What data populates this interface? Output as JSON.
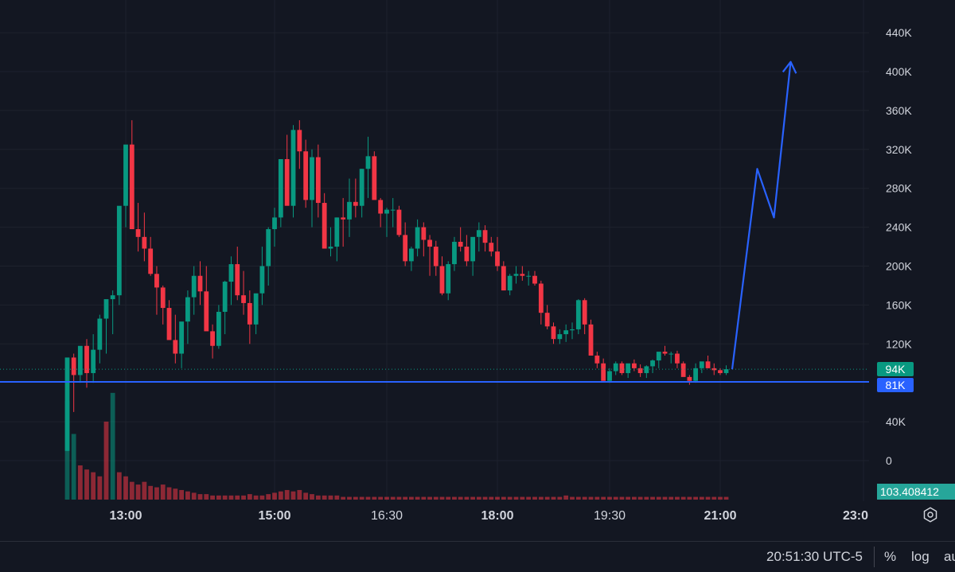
{
  "chart_data": {
    "type": "candlestick",
    "y_axis": {
      "ticks": [
        "440K",
        "400K",
        "360K",
        "320K",
        "280K",
        "240K",
        "200K",
        "160K",
        "120K",
        "40K",
        "0"
      ],
      "ylim": [
        -40000,
        470000
      ]
    },
    "x_axis": {
      "ticks": [
        {
          "label": "13:00",
          "bold": true
        },
        {
          "label": "15:00",
          "bold": true
        },
        {
          "label": "16:30",
          "bold": false
        },
        {
          "label": "18:00",
          "bold": true
        },
        {
          "label": "19:30",
          "bold": false
        },
        {
          "label": "21:00",
          "bold": true
        },
        {
          "label": "23:0",
          "bold": true
        }
      ]
    },
    "price_labels": {
      "current": {
        "text": "94K",
        "value": 94000,
        "color": "#089981"
      },
      "horizontal_line": {
        "text": "81K",
        "value": 81000,
        "color": "#2962ff"
      }
    },
    "volume_label": "103.408412",
    "candles": [
      [
        10,
        70,
        10,
        106
      ],
      [
        106,
        110,
        50,
        88
      ],
      [
        88,
        112,
        80,
        118
      ],
      [
        118,
        125,
        75,
        90
      ],
      [
        90,
        130,
        80,
        114
      ],
      [
        114,
        150,
        100,
        146
      ],
      [
        146,
        155,
        110,
        166
      ],
      [
        166,
        175,
        130,
        170
      ],
      [
        170,
        200,
        160,
        262
      ],
      [
        262,
        310,
        240,
        325
      ],
      [
        325,
        350,
        260,
        238
      ],
      [
        238,
        265,
        215,
        230
      ],
      [
        230,
        255,
        205,
        218
      ],
      [
        218,
        230,
        190,
        192
      ],
      [
        192,
        200,
        150,
        178
      ],
      [
        178,
        180,
        140,
        157
      ],
      [
        157,
        165,
        135,
        124
      ],
      [
        124,
        150,
        100,
        110
      ],
      [
        110,
        140,
        95,
        143
      ],
      [
        143,
        175,
        120,
        168
      ],
      [
        168,
        200,
        150,
        190
      ],
      [
        190,
        205,
        160,
        174
      ],
      [
        174,
        200,
        160,
        133
      ],
      [
        133,
        140,
        105,
        118
      ],
      [
        118,
        160,
        115,
        153
      ],
      [
        153,
        185,
        130,
        184
      ],
      [
        184,
        210,
        160,
        202
      ],
      [
        202,
        220,
        165,
        170
      ],
      [
        170,
        195,
        150,
        162
      ],
      [
        162,
        175,
        120,
        140
      ],
      [
        140,
        160,
        130,
        172
      ],
      [
        172,
        220,
        160,
        200
      ],
      [
        200,
        240,
        180,
        238
      ],
      [
        238,
        260,
        220,
        250
      ],
      [
        250,
        310,
        240,
        310
      ],
      [
        310,
        335,
        270,
        262
      ],
      [
        262,
        345,
        250,
        340
      ],
      [
        340,
        350,
        300,
        318
      ],
      [
        318,
        330,
        260,
        268
      ],
      [
        268,
        320,
        240,
        312
      ],
      [
        312,
        325,
        250,
        265
      ],
      [
        265,
        275,
        225,
        218
      ],
      [
        218,
        240,
        210,
        220
      ],
      [
        220,
        250,
        205,
        250
      ],
      [
        250,
        270,
        220,
        248
      ],
      [
        248,
        290,
        230,
        266
      ],
      [
        266,
        290,
        250,
        262
      ],
      [
        262,
        300,
        250,
        300
      ],
      [
        300,
        333,
        270,
        313
      ],
      [
        313,
        318,
        270,
        268
      ],
      [
        268,
        270,
        240,
        254
      ],
      [
        254,
        260,
        230,
        258
      ],
      [
        258,
        270,
        240,
        258
      ],
      [
        258,
        262,
        230,
        232
      ],
      [
        232,
        245,
        200,
        205
      ],
      [
        205,
        220,
        195,
        218
      ],
      [
        218,
        248,
        210,
        240
      ],
      [
        240,
        245,
        210,
        227
      ],
      [
        227,
        232,
        190,
        220
      ],
      [
        220,
        226,
        190,
        200
      ],
      [
        200,
        210,
        170,
        172
      ],
      [
        172,
        205,
        165,
        202
      ],
      [
        202,
        230,
        195,
        225
      ],
      [
        225,
        240,
        215,
        220
      ],
      [
        220,
        232,
        200,
        205
      ],
      [
        205,
        210,
        190,
        230
      ],
      [
        230,
        245,
        215,
        237
      ],
      [
        237,
        242,
        215,
        224
      ],
      [
        224,
        230,
        210,
        215
      ],
      [
        215,
        230,
        195,
        200
      ],
      [
        200,
        205,
        175,
        175
      ],
      [
        175,
        192,
        170,
        190
      ],
      [
        190,
        200,
        182,
        192
      ],
      [
        192,
        200,
        185,
        190
      ],
      [
        190,
        195,
        180,
        190
      ],
      [
        190,
        195,
        180,
        182
      ],
      [
        182,
        185,
        140,
        152
      ],
      [
        152,
        160,
        135,
        138
      ],
      [
        138,
        142,
        120,
        125
      ],
      [
        125,
        135,
        120,
        130
      ],
      [
        130,
        140,
        122,
        134
      ],
      [
        134,
        142,
        125,
        135
      ],
      [
        135,
        166,
        130,
        165
      ],
      [
        165,
        167,
        130,
        140
      ],
      [
        140,
        145,
        125,
        108
      ],
      [
        108,
        112,
        95,
        100
      ],
      [
        100,
        105,
        92,
        82
      ],
      [
        82,
        95,
        80,
        92
      ],
      [
        92,
        102,
        88,
        100
      ],
      [
        100,
        102,
        88,
        90
      ],
      [
        90,
        97,
        85,
        100
      ],
      [
        100,
        104,
        92,
        95
      ],
      [
        95,
        99,
        86,
        90
      ],
      [
        90,
        98,
        85,
        97
      ],
      [
        97,
        104,
        90,
        103
      ],
      [
        103,
        110,
        95,
        112
      ],
      [
        112,
        118,
        108,
        110
      ],
      [
        110,
        112,
        100,
        110
      ],
      [
        110,
        113,
        95,
        100
      ],
      [
        100,
        102,
        88,
        86
      ],
      [
        86,
        88,
        78,
        82
      ],
      [
        82,
        100,
        80,
        95
      ],
      [
        95,
        100,
        90,
        102
      ],
      [
        102,
        108,
        95,
        95
      ],
      [
        95,
        100,
        88,
        93
      ],
      [
        93,
        95,
        88,
        90
      ],
      [
        90,
        98,
        88,
        94
      ]
    ],
    "volumes": [
      [
        72,
        true
      ],
      [
        48,
        true
      ],
      [
        25,
        false
      ],
      [
        22,
        false
      ],
      [
        20,
        false
      ],
      [
        17,
        false
      ],
      [
        57,
        false
      ],
      [
        78,
        true
      ],
      [
        20,
        false
      ],
      [
        17,
        false
      ],
      [
        13,
        false
      ],
      [
        11,
        false
      ],
      [
        13,
        false
      ],
      [
        10,
        false
      ],
      [
        9,
        false
      ],
      [
        11,
        false
      ],
      [
        9,
        false
      ],
      [
        8,
        false
      ],
      [
        7,
        false
      ],
      [
        6,
        false
      ],
      [
        5,
        false
      ],
      [
        4,
        false
      ],
      [
        4,
        false
      ],
      [
        3,
        false
      ],
      [
        3,
        false
      ],
      [
        3,
        false
      ],
      [
        3,
        false
      ],
      [
        3,
        false
      ],
      [
        3,
        false
      ],
      [
        4,
        false
      ],
      [
        3,
        false
      ],
      [
        3,
        false
      ],
      [
        4,
        false
      ],
      [
        5,
        false
      ],
      [
        6,
        false
      ],
      [
        7,
        false
      ],
      [
        6,
        false
      ],
      [
        7,
        false
      ],
      [
        5,
        false
      ],
      [
        4,
        false
      ],
      [
        3,
        false
      ],
      [
        3,
        false
      ],
      [
        3,
        false
      ],
      [
        3,
        false
      ],
      [
        2,
        false
      ],
      [
        2,
        false
      ],
      [
        2,
        false
      ],
      [
        2,
        false
      ],
      [
        2,
        false
      ],
      [
        2,
        false
      ],
      [
        2,
        false
      ],
      [
        2,
        false
      ],
      [
        2,
        false
      ],
      [
        2,
        false
      ],
      [
        2,
        false
      ],
      [
        2,
        false
      ],
      [
        2,
        false
      ],
      [
        2,
        false
      ],
      [
        2,
        false
      ],
      [
        2,
        false
      ],
      [
        2,
        false
      ],
      [
        2,
        false
      ],
      [
        2,
        false
      ],
      [
        2,
        false
      ],
      [
        2,
        false
      ],
      [
        2,
        false
      ],
      [
        2,
        false
      ],
      [
        2,
        false
      ],
      [
        2,
        false
      ],
      [
        2,
        false
      ],
      [
        2,
        false
      ],
      [
        2,
        false
      ],
      [
        2,
        false
      ],
      [
        2,
        false
      ],
      [
        2,
        false
      ],
      [
        2,
        false
      ],
      [
        2,
        false
      ],
      [
        2,
        false
      ],
      [
        2,
        false
      ],
      [
        2,
        false
      ],
      [
        3,
        false
      ],
      [
        2,
        false
      ],
      [
        2,
        false
      ],
      [
        2,
        false
      ],
      [
        2,
        false
      ],
      [
        2,
        false
      ],
      [
        2,
        false
      ],
      [
        2,
        false
      ],
      [
        2,
        false
      ],
      [
        2,
        false
      ],
      [
        2,
        false
      ],
      [
        2,
        false
      ],
      [
        2,
        false
      ],
      [
        2,
        false
      ],
      [
        2,
        false
      ],
      [
        2,
        false
      ],
      [
        2,
        false
      ],
      [
        2,
        false
      ],
      [
        2,
        false
      ],
      [
        2,
        false
      ],
      [
        2,
        false
      ],
      [
        2,
        false
      ],
      [
        2,
        false
      ],
      [
        2,
        false
      ],
      [
        2,
        false
      ],
      [
        2,
        false
      ],
      [
        2,
        false
      ]
    ],
    "drawing": {
      "color": "#2962ff",
      "points": [
        [
          0,
          94000
        ],
        [
          3,
          300000
        ],
        [
          5,
          250000
        ],
        [
          7,
          410000
        ]
      ],
      "arrow_head": true
    },
    "grid": true,
    "colors": {
      "up": "#089981",
      "down": "#f23645",
      "grid": "#1e222d",
      "background": "#131722"
    }
  },
  "status_bar": {
    "time": "20:51:30 UTC-5",
    "percent_label": "%",
    "log_label": "log",
    "auto_label": "au"
  },
  "icons": {
    "settings": "gear-icon"
  }
}
